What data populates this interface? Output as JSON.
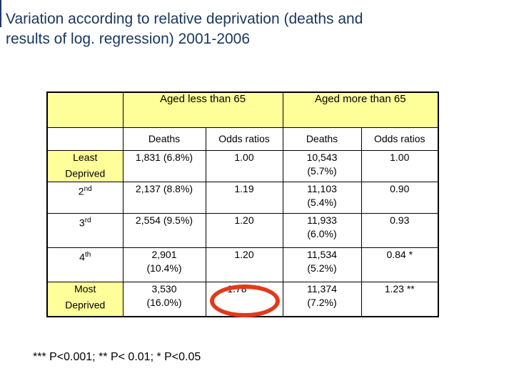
{
  "slide": {
    "title": "Variation according to relative deprivation (deaths and\nresults of log. regression) 2001-2006",
    "title_color": "#17375d",
    "footnote": "*** P<0.001; ** P< 0.01; * P<0.05",
    "background_color": "#ffffff"
  },
  "table": {
    "highlight_color": "#ffff99",
    "border_color": "#000000",
    "col_groups": [
      {
        "label": "Aged less than 65"
      },
      {
        "label": "Aged more than 65"
      }
    ],
    "sub_headers": [
      "Deaths",
      "Odds ratios",
      "Deaths",
      "Odds ratios"
    ],
    "rows": [
      {
        "label": {
          "base": "Least\nDeprived",
          "sup": ""
        },
        "highlighted": true,
        "cells": [
          "1,831 (6.8%)",
          "1.00",
          "10,543\n(5.7%)",
          "1.00"
        ]
      },
      {
        "label": {
          "base": "2",
          "sup": "nd"
        },
        "highlighted": false,
        "cells": [
          "2,137 (8.8%)",
          "1.19",
          "11,103\n(5.4%)",
          "0.90"
        ]
      },
      {
        "label": {
          "base": "3",
          "sup": "rd"
        },
        "highlighted": false,
        "cells": [
          "2,554 (9.5%)",
          "1.20",
          "11,933\n(6.0%)",
          "0.93"
        ]
      },
      {
        "label": {
          "base": "4",
          "sup": "th"
        },
        "highlighted": false,
        "cells": [
          "2,901\n(10.4%)",
          "1.20",
          "11,534\n(5.2%)",
          "0.84 *"
        ]
      },
      {
        "label": {
          "base": "Most\nDeprived",
          "sup": ""
        },
        "highlighted": true,
        "cells": [
          "3,530\n(16.0%)",
          "1.78 ***",
          "11,374\n(7.2%)",
          "1.23 **"
        ]
      }
    ],
    "annotation": {
      "shape": "ellipse",
      "color": "#e2391b",
      "circled_value": "1.78 ***",
      "circled_row": "Most Deprived",
      "circled_column": "Odds ratios (Aged less than 65)"
    }
  }
}
